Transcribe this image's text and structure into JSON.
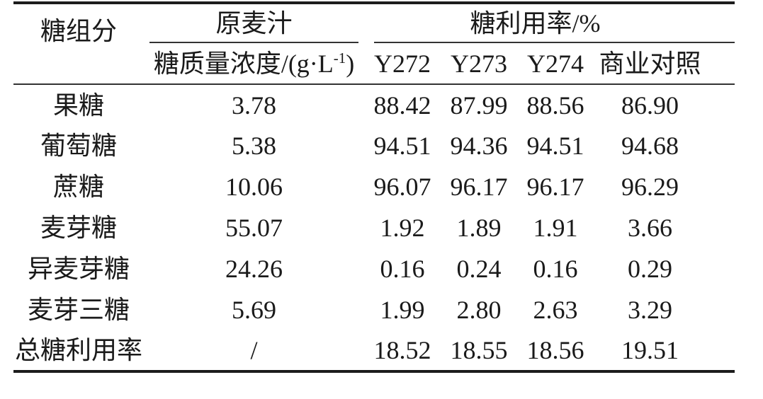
{
  "colors": {
    "background": "#ffffff",
    "text": "#1a1a1a",
    "thick_rule": "#1c1c1c",
    "thin_rule": "#333333"
  },
  "table": {
    "header": {
      "component": "糖组分",
      "wort_group": "原麦汁",
      "utilization_group": "糖利用率/%",
      "concentration_prefix": "糖质量浓度/(g·L",
      "concentration_sup": "-1",
      "concentration_suffix": ")",
      "strains": [
        "Y272",
        "Y273",
        "Y274",
        "商业对照"
      ]
    },
    "rows": [
      {
        "component": "果糖",
        "concentration": "3.78",
        "values": [
          "88.42",
          "87.99",
          "88.56",
          "86.90"
        ]
      },
      {
        "component": "葡萄糖",
        "concentration": "5.38",
        "values": [
          "94.51",
          "94.36",
          "94.51",
          "94.68"
        ]
      },
      {
        "component": "蔗糖",
        "concentration": "10.06",
        "values": [
          "96.07",
          "96.17",
          "96.17",
          "96.29"
        ]
      },
      {
        "component": "麦芽糖",
        "concentration": "55.07",
        "values": [
          "1.92",
          "1.89",
          "1.91",
          "3.66"
        ]
      },
      {
        "component": "异麦芽糖",
        "concentration": "24.26",
        "values": [
          "0.16",
          "0.24",
          "0.16",
          "0.29"
        ]
      },
      {
        "component": "麦芽三糖",
        "concentration": "5.69",
        "values": [
          "1.99",
          "2.80",
          "2.63",
          "3.29"
        ]
      },
      {
        "component": "总糖利用率",
        "concentration": "/",
        "values": [
          "18.52",
          "18.55",
          "18.56",
          "19.51"
        ]
      }
    ]
  },
  "chart_data": {
    "type": "table",
    "column_groups": [
      "糖组分",
      "原麦汁",
      "糖利用率/%"
    ],
    "columns": [
      "糖组分",
      "糖质量浓度/(g·L-1)",
      "Y272",
      "Y273",
      "Y274",
      "商业对照"
    ],
    "rows": [
      [
        "果糖",
        3.78,
        88.42,
        87.99,
        88.56,
        86.9
      ],
      [
        "葡萄糖",
        5.38,
        94.51,
        94.36,
        94.51,
        94.68
      ],
      [
        "蔗糖",
        10.06,
        96.07,
        96.17,
        96.17,
        96.29
      ],
      [
        "麦芽糖",
        55.07,
        1.92,
        1.89,
        1.91,
        3.66
      ],
      [
        "异麦芽糖",
        24.26,
        0.16,
        0.24,
        0.16,
        0.29
      ],
      [
        "麦芽三糖",
        5.69,
        1.99,
        2.8,
        2.63,
        3.29
      ],
      [
        "总糖利用率",
        "/",
        18.52,
        18.55,
        18.56,
        19.51
      ]
    ]
  }
}
